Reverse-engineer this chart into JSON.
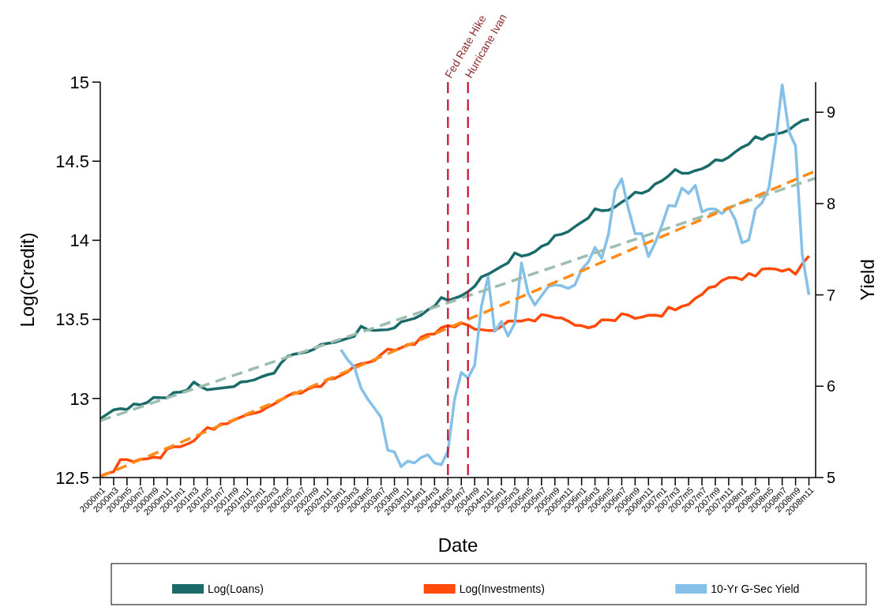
{
  "chart_data": {
    "type": "line",
    "xlabel": "Date",
    "ylabel": "Log(Credit)",
    "y2label": "Yield",
    "x": [
      "2000-01",
      "2000-02",
      "2000-03",
      "2000-04",
      "2000-05",
      "2000-06",
      "2000-07",
      "2000-08",
      "2000-09",
      "2000-10",
      "2000-11",
      "2000-12",
      "2001-01",
      "2001-02",
      "2001-03",
      "2001-04",
      "2001-05",
      "2001-06",
      "2001-07",
      "2001-08",
      "2001-09",
      "2001-10",
      "2001-11",
      "2001-12",
      "2002-01",
      "2002-02",
      "2002-03",
      "2002-04",
      "2002-05",
      "2002-06",
      "2002-07",
      "2002-08",
      "2002-09",
      "2002-10",
      "2002-11",
      "2002-12",
      "2003-01",
      "2003-02",
      "2003-03",
      "2003-04",
      "2003-05",
      "2003-06",
      "2003-07",
      "2003-08",
      "2003-09",
      "2003-10",
      "2003-11",
      "2003-12",
      "2004-01",
      "2004-02",
      "2004-03",
      "2004-04",
      "2004-05",
      "2004-06",
      "2004-07",
      "2004-08",
      "2004-09",
      "2004-10",
      "2004-11",
      "2004-12",
      "2005-01",
      "2005-02",
      "2005-03",
      "2005-04",
      "2005-05",
      "2005-06",
      "2005-07",
      "2005-08",
      "2005-09",
      "2005-10",
      "2005-11",
      "2005-12",
      "2006-01",
      "2006-02",
      "2006-03",
      "2006-04",
      "2006-05",
      "2006-06",
      "2006-07",
      "2006-08",
      "2006-09",
      "2006-10",
      "2006-11",
      "2006-12",
      "2007-01",
      "2007-02",
      "2007-03",
      "2007-04",
      "2007-05",
      "2007-06",
      "2007-07",
      "2007-08",
      "2007-09",
      "2007-10",
      "2007-11",
      "2007-12",
      "2008-01",
      "2008-02",
      "2008-03",
      "2008-04",
      "2008-05",
      "2008-06",
      "2008-07",
      "2008-08",
      "2008-09",
      "2008-10",
      "2008-11"
    ],
    "series": [
      {
        "name": "Log(Loans)",
        "color": "#1b6b6b",
        "values": [
          12.872,
          12.9,
          12.928,
          12.935,
          12.93,
          12.965,
          12.96,
          12.974,
          13.007,
          13.005,
          13.004,
          13.038,
          13.04,
          13.053,
          13.104,
          13.075,
          13.055,
          13.06,
          13.065,
          13.07,
          13.075,
          13.104,
          13.108,
          13.117,
          13.135,
          13.15,
          13.16,
          13.222,
          13.265,
          13.28,
          13.287,
          13.295,
          13.312,
          13.341,
          13.348,
          13.354,
          13.367,
          13.38,
          13.393,
          13.456,
          13.435,
          13.43,
          13.433,
          13.435,
          13.446,
          13.484,
          13.495,
          13.506,
          13.527,
          13.56,
          13.583,
          13.638,
          13.621,
          13.633,
          13.649,
          13.675,
          13.709,
          13.768,
          13.785,
          13.81,
          13.835,
          13.857,
          13.92,
          13.9,
          13.908,
          13.928,
          13.962,
          13.979,
          14.03,
          14.038,
          14.055,
          14.086,
          14.114,
          14.14,
          14.199,
          14.187,
          14.19,
          14.211,
          14.241,
          14.266,
          14.304,
          14.297,
          14.314,
          14.356,
          14.376,
          14.407,
          14.447,
          14.424,
          14.424,
          14.44,
          14.452,
          14.473,
          14.508,
          14.503,
          14.525,
          14.559,
          14.588,
          14.608,
          14.655,
          14.638,
          14.664,
          14.672,
          14.68,
          14.697,
          14.731,
          14.757,
          14.765
        ]
      },
      {
        "name": "Log(Investments)",
        "color": "#ff4a0a",
        "values": [
          12.508,
          12.525,
          12.537,
          12.613,
          12.613,
          12.6,
          12.615,
          12.618,
          12.63,
          12.623,
          12.681,
          12.695,
          12.695,
          12.711,
          12.732,
          12.776,
          12.816,
          12.804,
          12.838,
          12.841,
          12.864,
          12.881,
          12.898,
          12.906,
          12.918,
          12.945,
          12.965,
          12.99,
          13.016,
          13.036,
          13.033,
          13.058,
          13.075,
          13.075,
          13.121,
          13.126,
          13.146,
          13.168,
          13.205,
          13.219,
          13.227,
          13.239,
          13.278,
          13.312,
          13.303,
          13.32,
          13.341,
          13.341,
          13.388,
          13.405,
          13.408,
          13.447,
          13.461,
          13.452,
          13.477,
          13.464,
          13.438,
          13.435,
          13.43,
          13.43,
          13.455,
          13.489,
          13.489,
          13.489,
          13.5,
          13.489,
          13.531,
          13.523,
          13.511,
          13.509,
          13.489,
          13.463,
          13.46,
          13.447,
          13.458,
          13.497,
          13.497,
          13.492,
          13.536,
          13.526,
          13.506,
          13.514,
          13.526,
          13.527,
          13.519,
          13.577,
          13.56,
          13.582,
          13.594,
          13.633,
          13.658,
          13.7,
          13.709,
          13.746,
          13.764,
          13.764,
          13.751,
          13.79,
          13.773,
          13.818,
          13.821,
          13.818,
          13.805,
          13.818,
          13.785,
          13.852,
          13.9
        ]
      },
      {
        "name": "10-Yr G-Sec Yield",
        "color": "#85c0e9",
        "axis": "y2",
        "values": [
          null,
          null,
          null,
          null,
          null,
          null,
          null,
          null,
          null,
          null,
          null,
          null,
          null,
          null,
          null,
          null,
          null,
          null,
          null,
          null,
          null,
          null,
          null,
          null,
          null,
          null,
          null,
          null,
          null,
          null,
          null,
          null,
          null,
          null,
          null,
          null,
          6.4,
          6.29,
          6.21,
          5.98,
          5.86,
          5.76,
          5.66,
          5.3,
          5.28,
          5.12,
          5.18,
          5.16,
          5.22,
          5.25,
          5.16,
          5.14,
          5.29,
          5.86,
          6.15,
          6.09,
          6.23,
          6.87,
          7.2,
          6.6,
          6.71,
          6.55,
          6.69,
          7.35,
          7.02,
          6.89,
          6.99,
          7.09,
          7.11,
          7.1,
          7.07,
          7.11,
          7.28,
          7.36,
          7.52,
          7.4,
          7.66,
          8.14,
          8.27,
          7.94,
          7.67,
          7.67,
          7.42,
          7.57,
          7.76,
          7.98,
          7.97,
          8.17,
          8.11,
          8.2,
          7.91,
          7.94,
          7.94,
          7.89,
          7.96,
          7.82,
          7.57,
          7.6,
          7.94,
          8.01,
          8.17,
          8.67,
          9.3,
          8.79,
          8.63,
          7.44,
          7
        ]
      },
      {
        "type": "line",
        "color": "#9dbdb0",
        "line_style": "dashed",
        "x": [
          "2000-01",
          "2008-12"
        ],
        "values": [
          12.86,
          14.393
        ]
      },
      {
        "type": "line",
        "color": "#ff8c1a",
        "line_style": "dashed",
        "x": [
          "2000-01",
          "2008-12"
        ],
        "values": [
          12.505,
          14.439
        ]
      }
    ],
    "xlim": [
      "2000-01",
      "2008-12"
    ],
    "xticks": [
      {
        "value": "2000-01",
        "label": "2000m1"
      },
      {
        "value": "2000-03",
        "label": "2000m3"
      },
      {
        "value": "2000-05",
        "label": "2000m5"
      },
      {
        "value": "2000-07",
        "label": "2000m7"
      },
      {
        "value": "2000-09",
        "label": "2000m9"
      },
      {
        "value": "2000-11",
        "label": "2000m11"
      },
      {
        "value": "2001-01",
        "label": "2001m1"
      },
      {
        "value": "2001-03",
        "label": "2001m3"
      },
      {
        "value": "2001-05",
        "label": "2001m5"
      },
      {
        "value": "2001-07",
        "label": "2001m7"
      },
      {
        "value": "2001-09",
        "label": "2001m9"
      },
      {
        "value": "2001-11",
        "label": "2001m11"
      },
      {
        "value": "2002-01",
        "label": "2002m1"
      },
      {
        "value": "2002-03",
        "label": "2002m3"
      },
      {
        "value": "2002-05",
        "label": "2002m5"
      },
      {
        "value": "2002-07",
        "label": "2002m7"
      },
      {
        "value": "2002-09",
        "label": "2002m9"
      },
      {
        "value": "2002-11",
        "label": "2002m11"
      },
      {
        "value": "2003-01",
        "label": "2003m1"
      },
      {
        "value": "2003-03",
        "label": "2003m3"
      },
      {
        "value": "2003-05",
        "label": "2003m5"
      },
      {
        "value": "2003-07",
        "label": "2003m7"
      },
      {
        "value": "2003-09",
        "label": "2003m9"
      },
      {
        "value": "2003-11",
        "label": "2003m11"
      },
      {
        "value": "2004-01",
        "label": "2004m1"
      },
      {
        "value": "2004-03",
        "label": "2004m3"
      },
      {
        "value": "2004-05",
        "label": "2004m5"
      },
      {
        "value": "2004-07",
        "label": "2004m7"
      },
      {
        "value": "2004-09",
        "label": "2004m9"
      },
      {
        "value": "2004-11",
        "label": "2004m11"
      },
      {
        "value": "2005-01",
        "label": "2005m1"
      },
      {
        "value": "2005-03",
        "label": "2005m3"
      },
      {
        "value": "2005-05",
        "label": "2005m5"
      },
      {
        "value": "2005-07",
        "label": "2005m7"
      },
      {
        "value": "2005-09",
        "label": "2005m9"
      },
      {
        "value": "2005-11",
        "label": "2005m11"
      },
      {
        "value": "2006-01",
        "label": "2006m1"
      },
      {
        "value": "2006-03",
        "label": "2006m3"
      },
      {
        "value": "2006-05",
        "label": "2006m5"
      },
      {
        "value": "2006-07",
        "label": "2006m7"
      },
      {
        "value": "2006-09",
        "label": "2006m9"
      },
      {
        "value": "2006-11",
        "label": "2006m11"
      },
      {
        "value": "2007-01",
        "label": "2007m1"
      },
      {
        "value": "2007-03",
        "label": "2007m3"
      },
      {
        "value": "2007-05",
        "label": "2007m5"
      },
      {
        "value": "2007-07",
        "label": "2007m7"
      },
      {
        "value": "2007-09",
        "label": "2007m9"
      },
      {
        "value": "2007-11",
        "label": "2007m11"
      },
      {
        "value": "2008-01",
        "label": "2008m1"
      },
      {
        "value": "2008-03",
        "label": "2008m3"
      },
      {
        "value": "2008-05",
        "label": "2008m5"
      },
      {
        "value": "2008-07",
        "label": "2008m7"
      },
      {
        "value": "2008-09",
        "label": "2008m9"
      },
      {
        "value": "2008-11",
        "label": "2008m11"
      }
    ],
    "ylim": [
      12.5,
      15
    ],
    "yticks": [
      12.5,
      13,
      13.5,
      14,
      14.5,
      15
    ],
    "y2lim": [
      5,
      9.33
    ],
    "y2ticks": [
      5,
      6,
      7,
      8,
      9
    ],
    "ref_lines": [
      {
        "axis": "x",
        "value": "2004-05",
        "label": "Fed Rate Hike",
        "color": "#c8102e",
        "line_style": "dashed"
      },
      {
        "axis": "x",
        "value": "2004-08",
        "label": "Hurricane Ivan",
        "color": "#c8102e",
        "line_style": "dashed"
      }
    ],
    "legend": "bottom",
    "grid": false
  }
}
